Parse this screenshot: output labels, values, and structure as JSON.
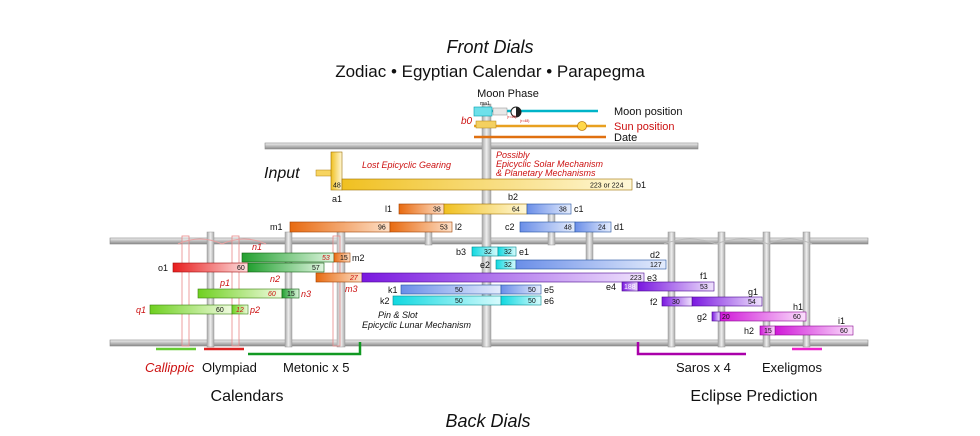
{
  "header": {
    "front_dials": "Front Dials",
    "front_subtitle": "Zodiac  •  Egyptian Calendar  •  Parapegma"
  },
  "top": {
    "moon_phase": "Moon Phase",
    "ma1": "ma1",
    "moon_position": "Moon position",
    "sun_position": "Sun position",
    "date": "Date",
    "b0": "b0"
  },
  "notes": {
    "input": "Input",
    "lost_gearing": "Lost Epicyclic Gearing",
    "possibly_1": "Possibly",
    "possibly_2": "Epicyclic Solar Mechanism",
    "possibly_3": "& Planetary Mechanisms",
    "pin_slot_1": "Pin & Slot",
    "pin_slot_2": "Epicyclic Lunar Mechanism"
  },
  "gears": [
    {
      "id": "a1",
      "teeth": "48"
    },
    {
      "id": "b1",
      "teeth": "223 or 224"
    },
    {
      "id": "l1",
      "teeth": "38"
    },
    {
      "id": "b2",
      "teeth": "64"
    },
    {
      "id": "c1",
      "teeth": "38"
    },
    {
      "id": "m1",
      "teeth": "96"
    },
    {
      "id": "l2",
      "teeth": "53"
    },
    {
      "id": "c2",
      "teeth": "48"
    },
    {
      "id": "d1",
      "teeth": "24"
    },
    {
      "id": "n1",
      "teeth": "53"
    },
    {
      "id": "m2",
      "teeth": "15"
    },
    {
      "id": "b3",
      "teeth": "32"
    },
    {
      "id": "e1",
      "teeth": "32"
    },
    {
      "id": "o1",
      "teeth": "60"
    },
    {
      "id": "n2",
      "teeth": "57"
    },
    {
      "id": "e2",
      "teeth": "32"
    },
    {
      "id": "d2",
      "teeth": "127"
    },
    {
      "id": "m3",
      "teeth": "27"
    },
    {
      "id": "e3",
      "teeth": "223"
    },
    {
      "id": "f1",
      "teeth": "53"
    },
    {
      "id": "e4",
      "teeth": "188"
    },
    {
      "id": "p1",
      "teeth": "60"
    },
    {
      "id": "n3",
      "teeth": "15"
    },
    {
      "id": "k1",
      "teeth": "50"
    },
    {
      "id": "e5",
      "teeth": "50"
    },
    {
      "id": "g1",
      "teeth": "54"
    },
    {
      "id": "k2",
      "teeth": "50"
    },
    {
      "id": "e6",
      "teeth": "50"
    },
    {
      "id": "f2",
      "teeth": "30"
    },
    {
      "id": "q1",
      "teeth": "60"
    },
    {
      "id": "p2",
      "teeth": "12"
    },
    {
      "id": "h1",
      "teeth": "60"
    },
    {
      "id": "g2",
      "teeth": "20"
    },
    {
      "id": "i1",
      "teeth": "60"
    },
    {
      "id": "h2",
      "teeth": "15"
    }
  ],
  "bottom": {
    "callippic": "Callippic",
    "olympiad": "Olympiad",
    "metonic": "Metonic x 5",
    "saros": "Saros x 4",
    "exeligmos": "Exeligmos",
    "calendars": "Calendars",
    "eclipse": "Eclipse Prediction",
    "back_dials": "Back Dials"
  },
  "colors": {
    "red_label": "#cc1111",
    "frame": "#b4b4b4",
    "axle": "#c8c8c8",
    "moon_cyan": "#00b4c8",
    "sun_orange": "#e8a020",
    "date_orange": "#e07010",
    "callippic_green": "#66cc33",
    "olympiad_red": "#dd2222",
    "metonic_green": "#119922",
    "saros_magenta": "#aa00aa",
    "exeligmos_pink": "#ee22cc"
  }
}
